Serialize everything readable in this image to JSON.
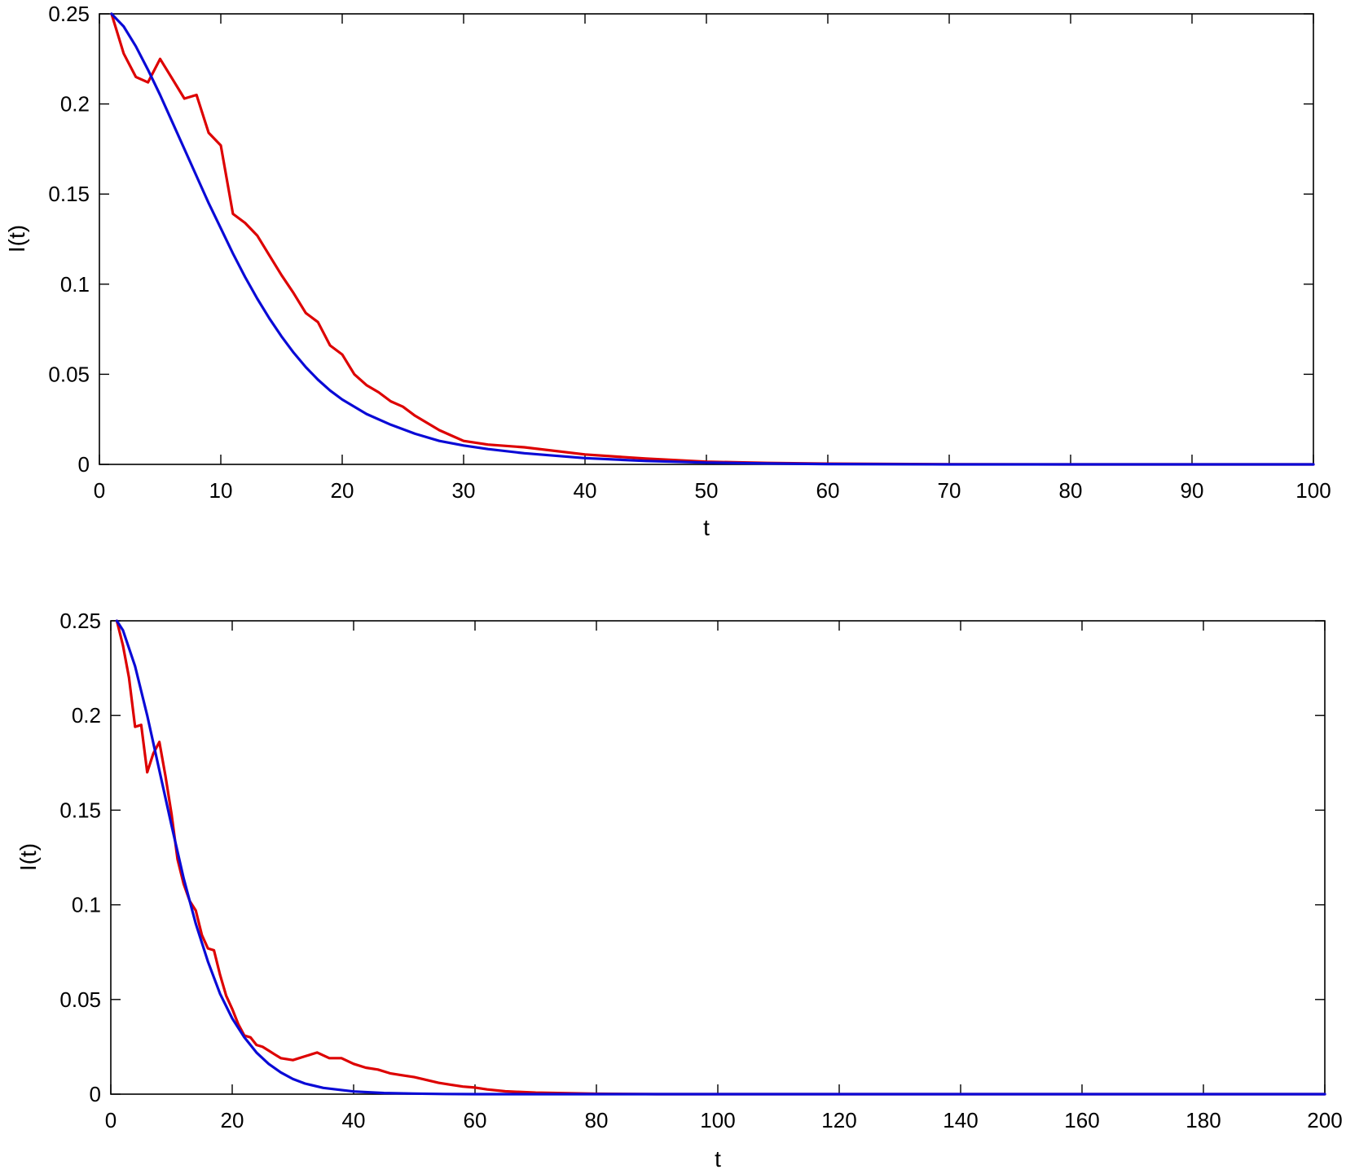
{
  "chart_data": [
    {
      "type": "line",
      "xlabel": "t",
      "ylabel": "I(t)",
      "xlim": [
        0,
        100
      ],
      "ylim": [
        0,
        0.25
      ],
      "xticks": [
        0,
        10,
        20,
        30,
        40,
        50,
        60,
        70,
        80,
        90,
        100
      ],
      "yticks": [
        0,
        0.05,
        0.1,
        0.15,
        0.2,
        0.25
      ],
      "xtick_labels": [
        "0",
        "10",
        "20",
        "30",
        "40",
        "50",
        "60",
        "70",
        "80",
        "90",
        "100"
      ],
      "ytick_labels": [
        "0",
        "0.05",
        "0.1",
        "0.15",
        "0.2",
        "0.25"
      ],
      "grid": false,
      "series": [
        {
          "color": "#dd0000",
          "x": [
            1,
            2,
            3,
            4,
            5,
            6,
            7,
            8,
            9,
            10,
            11,
            12,
            13,
            14,
            15,
            16,
            17,
            18,
            19,
            20,
            21,
            22,
            23,
            24,
            25,
            26,
            27,
            28,
            29,
            30,
            32,
            35,
            40,
            45,
            50,
            55,
            60,
            70,
            80,
            90,
            100
          ],
          "y": [
            0.25,
            0.228,
            0.215,
            0.212,
            0.225,
            0.214,
            0.203,
            0.205,
            0.184,
            0.177,
            0.139,
            0.134,
            0.127,
            0.116,
            0.105,
            0.095,
            0.084,
            0.079,
            0.066,
            0.061,
            0.05,
            0.044,
            0.04,
            0.035,
            0.032,
            0.027,
            0.023,
            0.019,
            0.016,
            0.013,
            0.011,
            0.0095,
            0.0055,
            0.0032,
            0.0015,
            0.0008,
            0.0004,
            0.0001,
            0.0,
            0.0,
            0.0
          ]
        },
        {
          "color": "#0a0ad6",
          "x": [
            1,
            2,
            3,
            4,
            5,
            6,
            7,
            8,
            9,
            10,
            11,
            12,
            13,
            14,
            15,
            16,
            17,
            18,
            19,
            20,
            22,
            24,
            26,
            28,
            30,
            32,
            35,
            40,
            45,
            50,
            55,
            60,
            70,
            80,
            90,
            100
          ],
          "y": [
            0.25,
            0.243,
            0.232,
            0.219,
            0.205,
            0.19,
            0.175,
            0.16,
            0.145,
            0.131,
            0.117,
            0.104,
            0.092,
            0.081,
            0.071,
            0.062,
            0.054,
            0.047,
            0.041,
            0.036,
            0.028,
            0.022,
            0.017,
            0.013,
            0.0105,
            0.0085,
            0.0062,
            0.0035,
            0.0019,
            0.001,
            0.0005,
            0.0002,
            0.0,
            0.0,
            0.0,
            0.0
          ]
        }
      ]
    },
    {
      "type": "line",
      "xlabel": "t",
      "ylabel": "I(t)",
      "xlim": [
        0,
        200
      ],
      "ylim": [
        0,
        0.25
      ],
      "xticks": [
        0,
        20,
        40,
        60,
        80,
        100,
        120,
        140,
        160,
        180,
        200
      ],
      "yticks": [
        0,
        0.05,
        0.1,
        0.15,
        0.2,
        0.25
      ],
      "xtick_labels": [
        "0",
        "20",
        "40",
        "60",
        "80",
        "100",
        "120",
        "140",
        "160",
        "180",
        "200"
      ],
      "ytick_labels": [
        "0",
        "0.05",
        "0.1",
        "0.15",
        "0.2",
        "0.25"
      ],
      "grid": false,
      "series": [
        {
          "color": "#dd0000",
          "x": [
            1,
            2,
            3,
            4,
            5,
            6,
            7,
            8,
            9,
            10,
            11,
            12,
            13,
            14,
            15,
            16,
            17,
            18,
            19,
            20,
            21,
            22,
            23,
            24,
            25,
            26,
            27,
            28,
            30,
            32,
            34,
            36,
            38,
            40,
            42,
            44,
            46,
            48,
            50,
            52,
            54,
            56,
            58,
            60,
            62,
            65,
            70,
            80,
            90,
            100,
            120,
            140,
            160,
            180,
            200
          ],
          "y": [
            0.25,
            0.237,
            0.22,
            0.194,
            0.195,
            0.17,
            0.18,
            0.186,
            0.168,
            0.148,
            0.124,
            0.111,
            0.102,
            0.097,
            0.084,
            0.077,
            0.076,
            0.063,
            0.052,
            0.045,
            0.037,
            0.031,
            0.03,
            0.026,
            0.025,
            0.023,
            0.021,
            0.019,
            0.018,
            0.02,
            0.022,
            0.019,
            0.019,
            0.016,
            0.014,
            0.013,
            0.011,
            0.01,
            0.009,
            0.0075,
            0.006,
            0.005,
            0.004,
            0.0035,
            0.0025,
            0.0015,
            0.0008,
            0.0002,
            0.0,
            0.0,
            0.0,
            0.0,
            0.0,
            0.0,
            0.0
          ]
        },
        {
          "color": "#0a0ad6",
          "x": [
            1,
            2,
            4,
            6,
            8,
            10,
            12,
            14,
            16,
            18,
            20,
            22,
            24,
            26,
            28,
            30,
            32,
            35,
            40,
            45,
            50,
            55,
            60,
            70,
            80,
            100,
            120,
            140,
            160,
            180,
            200
          ],
          "y": [
            0.25,
            0.245,
            0.226,
            0.2,
            0.171,
            0.142,
            0.114,
            0.09,
            0.07,
            0.053,
            0.04,
            0.03,
            0.022,
            0.016,
            0.0115,
            0.008,
            0.0056,
            0.0033,
            0.0014,
            0.0006,
            0.0003,
            0.0001,
            0.0,
            0.0,
            0.0,
            0.0,
            0.0,
            0.0,
            0.0,
            0.0,
            0.0
          ]
        }
      ]
    }
  ]
}
